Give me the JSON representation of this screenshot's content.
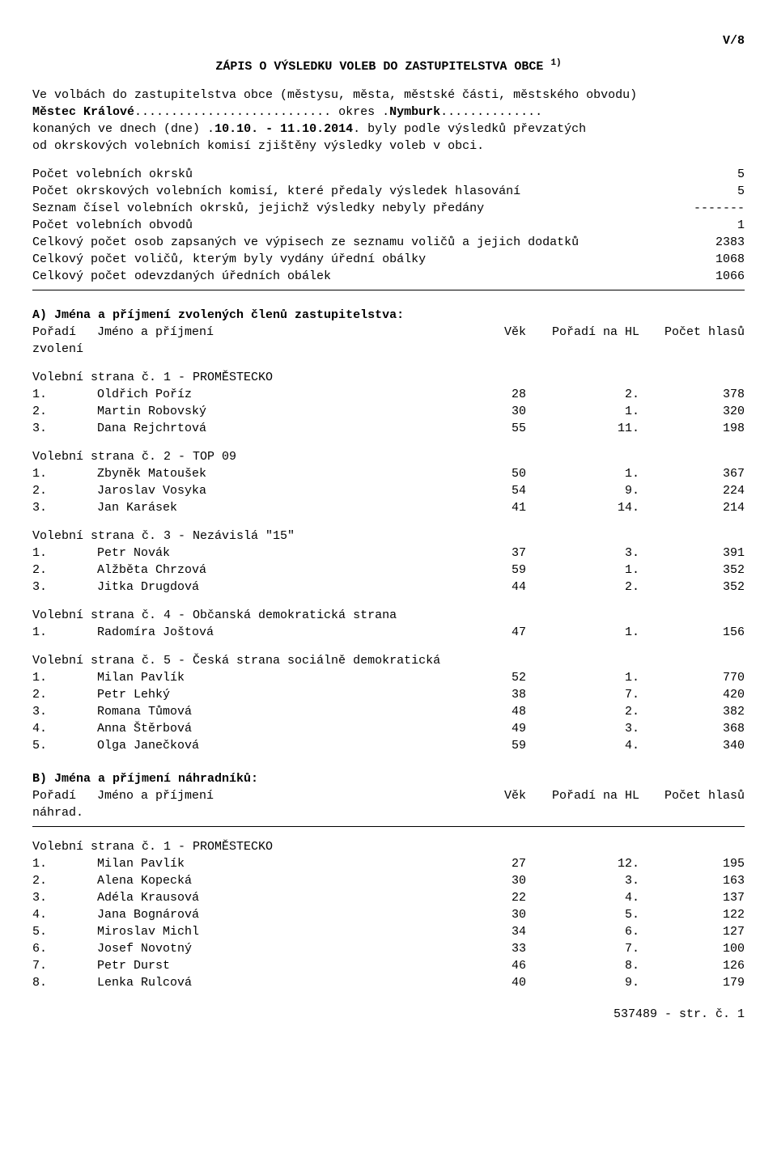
{
  "doc_code": "V/8",
  "title": "ZÁPIS O VÝSLEDKU VOLEB DO ZASTUPITELSTVA OBCE ",
  "title_sup": "1)",
  "intro_line1": "Ve volbách do zastupitelstva obce (městysu, města, městské části, městského obvodu)",
  "obec": "Městec Králové",
  "okres_word": " okres ",
  "okres": "Nymburk",
  "line2_a": "konaných ve dnech (dne) ",
  "dates": "10.10. - 11.10.2014",
  "line2_b": " byly podle výsledků převzatých",
  "line3": "od okrskových volebních komisí zjištěny výsledky voleb v obci.",
  "stats": [
    {
      "label": "Počet volebních okrsků",
      "value": "5"
    },
    {
      "label": "Počet okrskových volebních komisí, které předaly výsledek hlasování",
      "value": "5"
    },
    {
      "label": "Seznam čísel volebních okrsků, jejichž výsledky nebyly předány",
      "value": "-------"
    },
    {
      "label": "Počet volebních obvodů",
      "value": "1"
    },
    {
      "label": "Celkový počet osob zapsaných ve výpisech ze seznamu voličů a jejich dodatků",
      "value": "2383"
    },
    {
      "label": "Celkový počet voličů, kterým byly vydány úřední obálky",
      "value": "1068"
    },
    {
      "label": "Celkový počet odevzdaných úředních obálek",
      "value": "1066"
    }
  ],
  "sectionA_head": "A) Jména a příjmení zvolených členů zastupitelstva:",
  "col_pos": "Pořadí",
  "col_name": "Jméno a příjmení",
  "col_age": "Věk",
  "col_hl": "Pořadí na HL",
  "col_votes": "Počet hlasů",
  "col_sub_zvoleni": "zvolení",
  "col_sub_nahrad": "náhrad.",
  "partiesA": [
    {
      "head": "Volební strana č. 1 - PROMĚSTECKO",
      "rows": [
        {
          "pos": "1.",
          "name": "Oldřich Poříz",
          "age": "28",
          "hl": "2.",
          "votes": "378"
        },
        {
          "pos": "2.",
          "name": "Martin Robovský",
          "age": "30",
          "hl": "1.",
          "votes": "320"
        },
        {
          "pos": "3.",
          "name": "Dana Rejchrtová",
          "age": "55",
          "hl": "11.",
          "votes": "198"
        }
      ]
    },
    {
      "head": "Volební strana č. 2 - TOP 09",
      "rows": [
        {
          "pos": "1.",
          "name": "Zbyněk Matoušek",
          "age": "50",
          "hl": "1.",
          "votes": "367"
        },
        {
          "pos": "2.",
          "name": "Jaroslav Vosyka",
          "age": "54",
          "hl": "9.",
          "votes": "224"
        },
        {
          "pos": "3.",
          "name": "Jan Karásek",
          "age": "41",
          "hl": "14.",
          "votes": "214"
        }
      ]
    },
    {
      "head": "Volební strana č. 3 - Nezávislá \"15\"",
      "rows": [
        {
          "pos": "1.",
          "name": "Petr Novák",
          "age": "37",
          "hl": "3.",
          "votes": "391"
        },
        {
          "pos": "2.",
          "name": "Alžběta Chrzová",
          "age": "59",
          "hl": "1.",
          "votes": "352"
        },
        {
          "pos": "3.",
          "name": "Jitka Drugdová",
          "age": "44",
          "hl": "2.",
          "votes": "352"
        }
      ]
    },
    {
      "head": "Volební strana č. 4 - Občanská demokratická strana",
      "rows": [
        {
          "pos": "1.",
          "name": "Radomíra Joštová",
          "age": "47",
          "hl": "1.",
          "votes": "156"
        }
      ]
    },
    {
      "head": "Volební strana č. 5 - Česká strana sociálně demokratická",
      "rows": [
        {
          "pos": "1.",
          "name": "Milan Pavlík",
          "age": "52",
          "hl": "1.",
          "votes": "770"
        },
        {
          "pos": "2.",
          "name": "Petr Lehký",
          "age": "38",
          "hl": "7.",
          "votes": "420"
        },
        {
          "pos": "3.",
          "name": "Romana Tůmová",
          "age": "48",
          "hl": "2.",
          "votes": "382"
        },
        {
          "pos": "4.",
          "name": "Anna Štěrbová",
          "age": "49",
          "hl": "3.",
          "votes": "368"
        },
        {
          "pos": "5.",
          "name": "Olga Janečková",
          "age": "59",
          "hl": "4.",
          "votes": "340"
        }
      ]
    }
  ],
  "sectionB_head": "B) Jména a příjmení náhradníků:",
  "partiesB": [
    {
      "head": "Volební strana č. 1 - PROMĚSTECKO",
      "rows": [
        {
          "pos": "1.",
          "name": "Milan Pavlík",
          "age": "27",
          "hl": "12.",
          "votes": "195"
        },
        {
          "pos": "2.",
          "name": "Alena Kopecká",
          "age": "30",
          "hl": "3.",
          "votes": "163"
        },
        {
          "pos": "3.",
          "name": "Adéla Krausová",
          "age": "22",
          "hl": "4.",
          "votes": "137"
        },
        {
          "pos": "4.",
          "name": "Jana Bognárová",
          "age": "30",
          "hl": "5.",
          "votes": "122"
        },
        {
          "pos": "5.",
          "name": "Miroslav Michl",
          "age": "34",
          "hl": "6.",
          "votes": "127"
        },
        {
          "pos": "6.",
          "name": "Josef Novotný",
          "age": "33",
          "hl": "7.",
          "votes": "100"
        },
        {
          "pos": "7.",
          "name": "Petr Durst",
          "age": "46",
          "hl": "8.",
          "votes": "126"
        },
        {
          "pos": "8.",
          "name": "Lenka Rulcová",
          "age": "40",
          "hl": "9.",
          "votes": "179"
        }
      ]
    }
  ],
  "footer": "537489 - str. č. 1"
}
